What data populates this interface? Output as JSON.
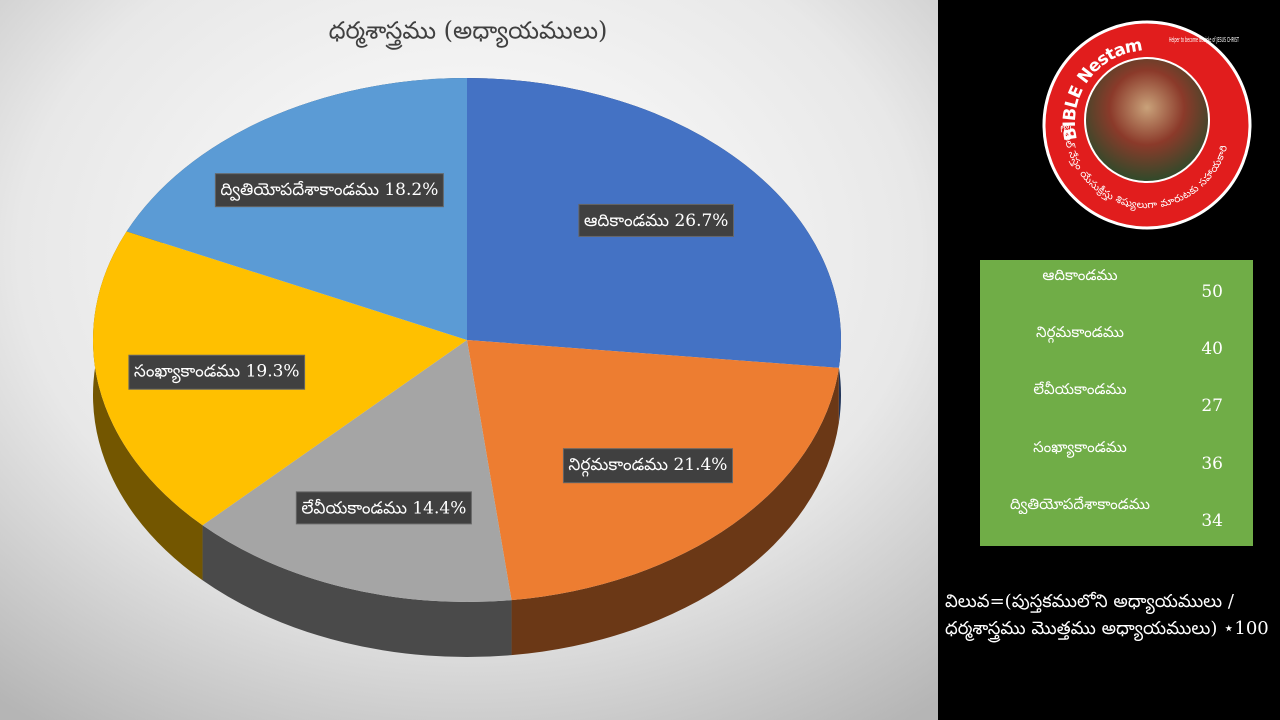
{
  "chart_data": {
    "type": "pie",
    "title": "ధర్మశాస్త్రము (అధ్యాయములు)",
    "categories": [
      "ఆదికాండము",
      "నిర్గమకాండము",
      "లేవీయకాండము",
      "సంఖ్యాకాండము",
      "ద్వితియోపదేశాకాండము"
    ],
    "values": [
      26.7,
      21.4,
      14.4,
      19.3,
      18.2
    ],
    "value_labels": [
      "26.7%",
      "21.4%",
      "14.4%",
      "19.3%",
      "18.2%"
    ],
    "colors": [
      "#4472c4",
      "#ed7d31",
      "#a5a5a5",
      "#ffc000",
      "#5b9bd5"
    ]
  },
  "table": {
    "rows": [
      [
        "ఆదికాండము",
        "50"
      ],
      [
        "నిర్గమకాండము",
        "40"
      ],
      [
        "లేవీయకాండము",
        "27"
      ],
      [
        "సంఖ్యాకాండము",
        "36"
      ],
      [
        "ద్వితియోపదేశాకాండము",
        "34"
      ]
    ]
  },
  "note": "విలువ=(పుస్తకములోని అధ్యాయములు / ధర్మశాస్త్రము మొత్తము అధ్యాయములు) ⋆100",
  "logo": {
    "name": "BIBLE Nestam",
    "tagline": "Helper to become disciple of JESUS CHRIST",
    "telugu": "బైబిల్ నేస్తం యేసుక్రీస్తు శిష్యులుగా మారుటకు సహాయకారి"
  }
}
